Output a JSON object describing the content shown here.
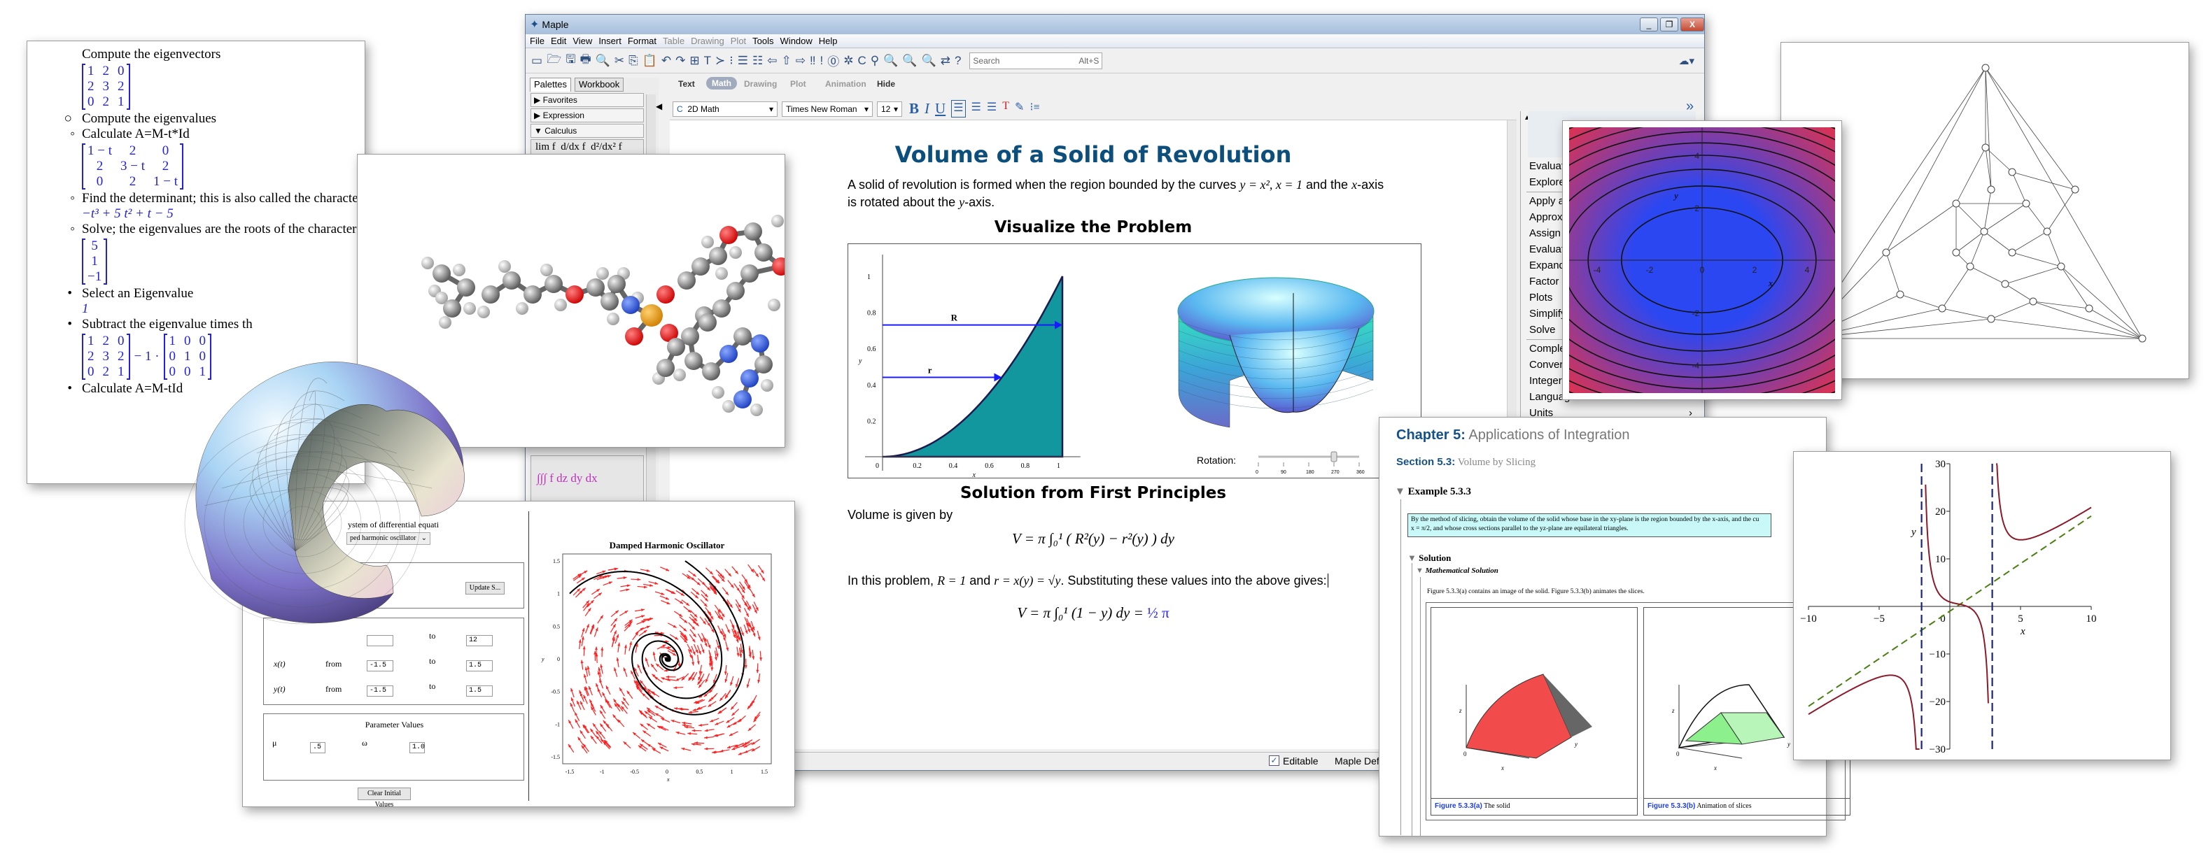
{
  "left_doc": {
    "items": [
      {
        "kind": "text",
        "bullet": "",
        "text": "Compute the eigenvectors"
      },
      {
        "kind": "matrix",
        "rows": [
          [
            "1",
            "2",
            "0"
          ],
          [
            "2",
            "3",
            "2"
          ],
          [
            "0",
            "2",
            "1"
          ]
        ]
      },
      {
        "kind": "text",
        "bullet": "○",
        "text": "Compute the eigenvalues"
      },
      {
        "kind": "sub",
        "bullet": "◦",
        "text": "Calculate A=M-t*Id"
      },
      {
        "kind": "matrix",
        "rows": [
          [
            "1 − t",
            "2",
            "0"
          ],
          [
            "2",
            "3 − t",
            "2"
          ],
          [
            "0",
            "2",
            "1 − t"
          ]
        ]
      },
      {
        "kind": "sub",
        "bullet": "◦",
        "text": "Find the determinant; this is also called the characteristic"
      },
      {
        "kind": "math",
        "text": "−t³ + 5 t² + t − 5"
      },
      {
        "kind": "sub",
        "bullet": "◦",
        "text": "Solve; the eigenvalues are the roots of the characteristic"
      },
      {
        "kind": "matrix",
        "rows": [
          [
            "5"
          ],
          [
            "1"
          ],
          [
            "−1"
          ]
        ]
      },
      {
        "kind": "text",
        "bullet": "•",
        "text": "Select an Eigenvalue"
      },
      {
        "kind": "math",
        "text": "1"
      },
      {
        "kind": "text",
        "bullet": "•",
        "text": "Subtract the eigenvalue times th"
      },
      {
        "kind": "matdiff",
        "left": [
          [
            "1",
            "2",
            "0"
          ],
          [
            "2",
            "3",
            "2"
          ],
          [
            "0",
            "2",
            "1"
          ]
        ],
        "op": "− 1 ·",
        "right": [
          [
            "1",
            "0",
            "0"
          ],
          [
            "0",
            "1",
            "0"
          ],
          [
            "0",
            "0",
            "1"
          ]
        ]
      },
      {
        "kind": "text",
        "bullet": "•",
        "text": "Calculate A=M-tId"
      }
    ]
  },
  "maple": {
    "title": "Maple",
    "window_buttons": {
      "minimize": "_",
      "restore": "❐",
      "close": "X"
    },
    "menu": [
      {
        "label": "File",
        "enabled": true
      },
      {
        "label": "Edit",
        "enabled": true
      },
      {
        "label": "View",
        "enabled": true
      },
      {
        "label": "Insert",
        "enabled": true
      },
      {
        "label": "Format",
        "enabled": true
      },
      {
        "label": "Table",
        "enabled": false
      },
      {
        "label": "Drawing",
        "enabled": false
      },
      {
        "label": "Plot",
        "enabled": false
      },
      {
        "label": "Tools",
        "enabled": true
      },
      {
        "label": "Window",
        "enabled": true
      },
      {
        "label": "Help",
        "enabled": true
      }
    ],
    "toolbar_icons": [
      "new-document-icon",
      "open-icon",
      "save-icon",
      "print-icon",
      "print-preview-icon",
      "cut-icon",
      "copy-icon",
      "paste-icon",
      "undo-icon",
      "redo-icon",
      "text-mode-icon",
      "insert-text-icon",
      "insert-prompt-icon",
      "execution-group-icon",
      "indent-icon",
      "outdent-icon",
      "back-icon",
      "home-icon",
      "forward-icon",
      "execute-all-icon",
      "execute-icon",
      "stop-icon",
      "debug-icon",
      "restart-icon",
      "link-icon",
      "zoom-in-icon",
      "zoom-normal-icon",
      "zoom-out-icon",
      "swap-icon",
      "help-icon"
    ],
    "toolbar_glyphs": [
      "▭",
      "🗁",
      "🖫",
      "🖶",
      "🔍",
      "✂",
      "⎘",
      "📋",
      "↶",
      "↷",
      "⊞",
      "T",
      "≻",
      "⁝",
      "☰",
      "☷",
      "⇦",
      "⇧",
      "⇨",
      "‼",
      "!",
      "⓪",
      "✲",
      "C",
      "⚲",
      "🔍",
      "🔍",
      "🔍",
      "⇄",
      "?"
    ],
    "search": {
      "placeholder": "Search",
      "shortcut": "Alt+S"
    },
    "cloud_icon": "☁▾",
    "palette": {
      "tabs": [
        "Palettes",
        "Workbook"
      ],
      "sections": [
        {
          "label": "Favorites",
          "expanded": false
        },
        {
          "label": "Expression",
          "expanded": false
        },
        {
          "label": "Calculus",
          "expanded": true
        }
      ],
      "calculus_row": [
        "lim f",
        "d/dx f",
        "d²/dx² f"
      ],
      "triple_integral": "∫∫∫ f dz dy dx"
    },
    "mode_tabs": [
      {
        "label": "Text",
        "state": "normal"
      },
      {
        "label": "Math",
        "state": "active"
      },
      {
        "label": "Drawing",
        "state": "disabled"
      },
      {
        "label": "Plot",
        "state": "disabled"
      },
      {
        "label": "Animation",
        "state": "disabled"
      },
      {
        "label": "Hide",
        "state": "normal"
      }
    ],
    "format_bar": {
      "style": "2D Math",
      "font": "Times New Roman",
      "size": "12",
      "bold": "B",
      "italic": "I",
      "underline": "U",
      "expand": "»"
    },
    "document": {
      "title": "Volume of a Solid of Revolution",
      "intro_1": "A solid of revolution is formed when the region bounded by the curves ",
      "intro_math_1": "y = x², x = 1",
      "intro_2": " and the ",
      "intro_math_2": "x",
      "intro_3": "-axis",
      "intro_4": "is rotated about the ",
      "intro_math_3": "y",
      "intro_5": "-axis.",
      "visualize_heading": "Visualize the Problem",
      "plot2d": {
        "xlabel": "x",
        "ylabel": "y",
        "xticks": [
          "0",
          "0.2",
          "0.4",
          "0.6",
          "0.8",
          "1"
        ],
        "yticks": [
          "0.2",
          "0.4",
          "0.6",
          "0.8",
          "1"
        ],
        "labels": {
          "R": "R",
          "r": "r"
        },
        "fill_color": "#13979f",
        "arrow_color": "#1a1aff"
      },
      "rotation": {
        "label": "Rotation:",
        "ticks": [
          "0",
          "90",
          "180",
          "270",
          "360"
        ],
        "value": 270
      },
      "solution_heading": "Solution from First Principles",
      "volume_text": "Volume is given by",
      "formula_1": "V = π ∫₀¹ ( R²(y) − r²(y) ) dy",
      "problem_text_1": "In this problem, ",
      "problem_math_1": "R = 1",
      "problem_text_2": " and ",
      "problem_math_2": "r = x(y) = √y",
      "problem_text_3": ". Substituting these values into the above gives:",
      "formula_2": "V = π ∫₀¹ (1 − y) dy = ",
      "formula_2_result": "½ π"
    },
    "context_menu": [
      "Evaluate a",
      "Explore",
      "Apply a Co",
      "Approxima",
      "Assign to a",
      "Evaluate",
      "Expand",
      "Factor",
      "Plots",
      "Simplify",
      "Solve",
      "Complex M",
      "Conversio",
      "Integer Fu",
      "Language",
      "Units"
    ],
    "context_submenu_arrow": "›",
    "status": {
      "editable_label": "Editable",
      "editable_checked": true,
      "profile": "Maple Default Profile"
    }
  },
  "oscillator": {
    "system_label": "ystem of differential equati",
    "system_select": "ped harmonic oscillator",
    "update_button": "Update S...",
    "range_rows": [
      {
        "label": "",
        "from_label": "",
        "from": "",
        "to_label": "to",
        "to": "12"
      },
      {
        "label": "x(t)",
        "from_label": "from",
        "from": "-1.5",
        "to_label": "to",
        "to": "1.5"
      },
      {
        "label": "y(t)",
        "from_label": "from",
        "from": "-1.5",
        "to_label": "to",
        "to": "1.5"
      }
    ],
    "parameters_title": "Parameter Values",
    "parameters": [
      {
        "label": "μ",
        "value": ".5"
      },
      {
        "label": "ω",
        "value": "1.0"
      }
    ],
    "clear_button": "Clear Initial Values",
    "plot": {
      "title": "Damped Harmonic Oscillator",
      "xlabel": "x",
      "ylabel": "y",
      "ticks": [
        "-1.5",
        "-1",
        "-0.5",
        "0",
        "0.5",
        "1",
        "1.5"
      ],
      "arrow_color": "#ff2020"
    }
  },
  "contour": {
    "xlabel": "x",
    "ylabel": "y",
    "xticks": [
      "-4",
      "-2",
      "0",
      "2",
      "4"
    ],
    "yticks": [
      "4",
      "2",
      "-2",
      "-4"
    ],
    "inner_color": "#2b47f2",
    "outer_color": "#f0303f"
  },
  "chapter": {
    "chapter_label": "Chapter 5:",
    "chapter_title": "Applications of Integration",
    "section_label": "Section 5.3:",
    "section_title": "Volume by Slicing",
    "example": "Example 5.3.3",
    "problem_line_1": "By the method of slicing, obtain the volume of the solid whose base in the xy-plane is the region bounded by the x-axis, and the cu",
    "problem_line_2": "x = π/2, and whose cross sections parallel to the yz-plane are equilateral triangles.",
    "solution": "Solution",
    "math_solution": "Mathematical Solution",
    "figure_text": "Figure 5.3.3(a) contains an image of the solid. Figure 5.3.3(b) animates the slices.",
    "figures": [
      {
        "label": "Figure 5.3.3(a)",
        "caption": "The solid",
        "axes": [
          "z",
          "x",
          "y",
          "0"
        ]
      },
      {
        "label": "Figure 5.3.3(b)",
        "caption": "Animation of slices",
        "axes": [
          "z",
          "x",
          "y",
          "0"
        ]
      }
    ]
  },
  "asymptote_plot": {
    "xlabel": "x",
    "ylabel": "y",
    "xticks": [
      "−10",
      "−5",
      "0",
      "5",
      "10"
    ],
    "yticks": [
      "30",
      "20",
      "10",
      "−10",
      "−20",
      "−30"
    ],
    "curve_color": "#8b1a2a",
    "asymptote_color": "#1a237e",
    "oblique_color": "#4a7f10"
  }
}
